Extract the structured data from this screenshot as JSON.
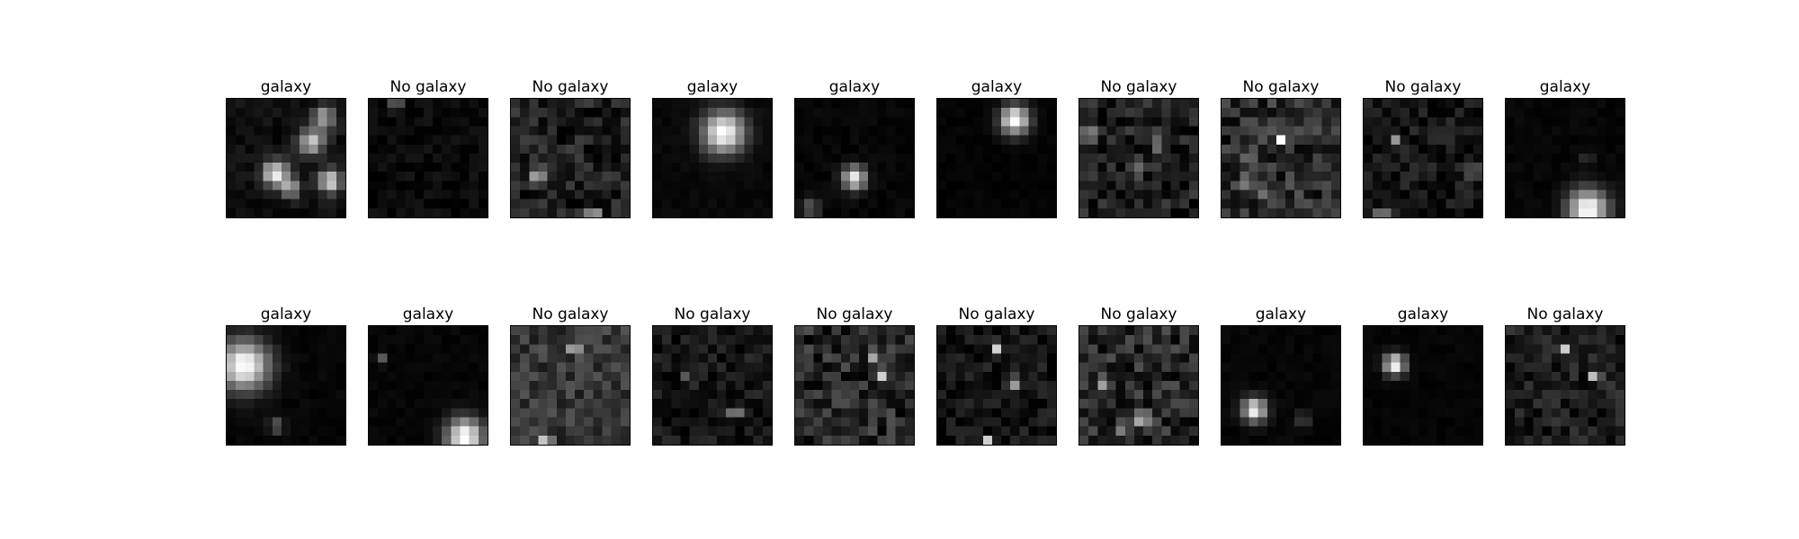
{
  "figure": {
    "rows": [
      {
        "panels": [
          {
            "label": "galaxy",
            "brightness": "bright",
            "sources": [
              {
                "cx": 10.2,
                "cy": 1.6,
                "sigma": 0.9,
                "amp": 150
              },
              {
                "cx": 8.8,
                "cy": 4.2,
                "sigma": 1.0,
                "amp": 185
              },
              {
                "cx": 4.8,
                "cy": 7.7,
                "sigma": 1.0,
                "amp": 220
              },
              {
                "cx": 6.5,
                "cy": 9.2,
                "sigma": 0.8,
                "amp": 140
              },
              {
                "cx": 10.8,
                "cy": 8.5,
                "sigma": 0.9,
                "amp": 210
              }
            ],
            "background": 14,
            "noise": 12
          },
          {
            "label": "No galaxy",
            "brightness": "dark",
            "sources": [
              {
                "cx": 2.5,
                "cy": 0.3,
                "sigma": 0.35,
                "amp": 255
              }
            ],
            "background": 10,
            "noise": 12
          },
          {
            "label": "No galaxy",
            "brightness": "medium",
            "sources": [
              {
                "cx": 2.5,
                "cy": 8.0,
                "sigma": 0.5,
                "amp": 150
              },
              {
                "cx": 8.5,
                "cy": 12.2,
                "sigma": 0.4,
                "amp": 230
              }
            ],
            "background": 30,
            "noise": 34
          },
          {
            "label": "galaxy",
            "brightness": "bright",
            "sources": [
              {
                "cx": 7.2,
                "cy": 3.2,
                "sigma": 1.6,
                "amp": 255
              }
            ],
            "background": 8,
            "noise": 5
          },
          {
            "label": "galaxy",
            "brightness": "bright",
            "sources": [
              {
                "cx": 6.0,
                "cy": 8.2,
                "sigma": 0.9,
                "amp": 230
              },
              {
                "cx": 1.2,
                "cy": 11.5,
                "sigma": 0.7,
                "amp": 90
              }
            ],
            "background": 6,
            "noise": 6
          },
          {
            "label": "galaxy",
            "brightness": "bright",
            "sources": [
              {
                "cx": 8.0,
                "cy": 1.8,
                "sigma": 1.1,
                "amp": 255
              }
            ],
            "background": 4,
            "noise": 4
          },
          {
            "label": "No galaxy",
            "brightness": "medium",
            "sources": [
              {
                "cx": 0.6,
                "cy": 3.4,
                "sigma": 0.4,
                "amp": 220
              },
              {
                "cx": 8.3,
                "cy": 4.4,
                "sigma": 0.45,
                "amp": 160
              },
              {
                "cx": 5.8,
                "cy": 7.4,
                "sigma": 0.4,
                "amp": 170
              }
            ],
            "background": 30,
            "noise": 34
          },
          {
            "label": "No galaxy",
            "brightness": "medium",
            "sources": [
              {
                "cx": 5.9,
                "cy": 4.0,
                "sigma": 0.4,
                "amp": 230
              },
              {
                "cx": 2.6,
                "cy": 5.6,
                "sigma": 0.4,
                "amp": 160
              },
              {
                "cx": 2.3,
                "cy": 8.4,
                "sigma": 0.4,
                "amp": 200
              },
              {
                "cx": 4.2,
                "cy": 10.3,
                "sigma": 0.4,
                "amp": 150
              }
            ],
            "background": 45,
            "noise": 40
          },
          {
            "label": "No galaxy",
            "brightness": "dark",
            "sources": [
              {
                "cx": 11.4,
                "cy": 7.5,
                "sigma": 0.4,
                "amp": 220
              },
              {
                "cx": 3.0,
                "cy": 3.8,
                "sigma": 0.4,
                "amp": 120
              },
              {
                "cx": 1.5,
                "cy": 12.2,
                "sigma": 0.4,
                "amp": 230
              }
            ],
            "background": 20,
            "noise": 26
          },
          {
            "label": "galaxy",
            "brightness": "bright",
            "sources": [
              {
                "cx": 8.5,
                "cy": 11.6,
                "sigma": 1.5,
                "amp": 255
              },
              {
                "cx": 8.4,
                "cy": 6.0,
                "sigma": 0.5,
                "amp": 40
              }
            ],
            "background": 6,
            "noise": 5
          }
        ]
      },
      {
        "panels": [
          {
            "label": "galaxy",
            "brightness": "bright",
            "sources": [
              {
                "cx": 1.4,
                "cy": 3.8,
                "sigma": 1.9,
                "amp": 255
              },
              {
                "cx": 4.9,
                "cy": 10.4,
                "sigma": 0.6,
                "amp": 90
              }
            ],
            "background": 6,
            "noise": 5
          },
          {
            "label": "galaxy",
            "brightness": "bright",
            "sources": [
              {
                "cx": 10.0,
                "cy": 11.6,
                "sigma": 1.4,
                "amp": 255
              },
              {
                "cx": 0.8,
                "cy": 3.0,
                "sigma": 0.4,
                "amp": 90
              }
            ],
            "background": 6,
            "noise": 5
          },
          {
            "label": "No galaxy",
            "brightness": "medium",
            "sources": [
              {
                "cx": 3.3,
                "cy": 11.8,
                "sigma": 0.35,
                "amp": 240
              },
              {
                "cx": 6.5,
                "cy": 2.0,
                "sigma": 0.4,
                "amp": 160
              }
            ],
            "background": 55,
            "noise": 30
          },
          {
            "label": "No galaxy",
            "brightness": "dark",
            "sources": [
              {
                "cx": 8.5,
                "cy": 9.0,
                "sigma": 0.4,
                "amp": 240
              },
              {
                "cx": 3.4,
                "cy": 5.0,
                "sigma": 0.4,
                "amp": 100
              }
            ],
            "background": 20,
            "noise": 24
          },
          {
            "label": "No galaxy",
            "brightness": "medium",
            "sources": [
              {
                "cx": 8.7,
                "cy": 5.2,
                "sigma": 0.4,
                "amp": 250
              },
              {
                "cx": 8.2,
                "cy": 2.7,
                "sigma": 0.4,
                "amp": 180
              },
              {
                "cx": 5.5,
                "cy": 7.5,
                "sigma": 0.4,
                "amp": 140
              }
            ],
            "background": 40,
            "noise": 40
          },
          {
            "label": "No galaxy",
            "brightness": "dark",
            "sources": [
              {
                "cx": 6.1,
                "cy": 1.7,
                "sigma": 0.4,
                "amp": 240
              },
              {
                "cx": 8.1,
                "cy": 5.6,
                "sigma": 0.4,
                "amp": 200
              },
              {
                "cx": 5.0,
                "cy": 12.1,
                "sigma": 0.4,
                "amp": 180
              }
            ],
            "background": 20,
            "noise": 24
          },
          {
            "label": "No galaxy",
            "brightness": "medium",
            "sources": [
              {
                "cx": 2.4,
                "cy": 5.6,
                "sigma": 0.4,
                "amp": 220
              },
              {
                "cx": 6.4,
                "cy": 9.6,
                "sigma": 0.4,
                "amp": 240
              },
              {
                "cx": 4.1,
                "cy": 10.7,
                "sigma": 0.4,
                "amp": 130
              }
            ],
            "background": 40,
            "noise": 40
          },
          {
            "label": "galaxy",
            "brightness": "bright",
            "sources": [
              {
                "cx": 3.1,
                "cy": 8.7,
                "sigma": 0.9,
                "amp": 240
              },
              {
                "cx": 8.5,
                "cy": 9.7,
                "sigma": 0.5,
                "amp": 80
              }
            ],
            "background": 6,
            "noise": 5
          },
          {
            "label": "galaxy",
            "brightness": "bright",
            "sources": [
              {
                "cx": 2.9,
                "cy": 3.7,
                "sigma": 0.8,
                "amp": 255
              }
            ],
            "background": 5,
            "noise": 4
          },
          {
            "label": "No galaxy",
            "brightness": "dark",
            "sources": [
              {
                "cx": 9.3,
                "cy": 4.8,
                "sigma": 0.4,
                "amp": 250
              },
              {
                "cx": 6.0,
                "cy": 2.0,
                "sigma": 0.4,
                "amp": 150
              }
            ],
            "background": 28,
            "noise": 28
          }
        ]
      }
    ]
  }
}
